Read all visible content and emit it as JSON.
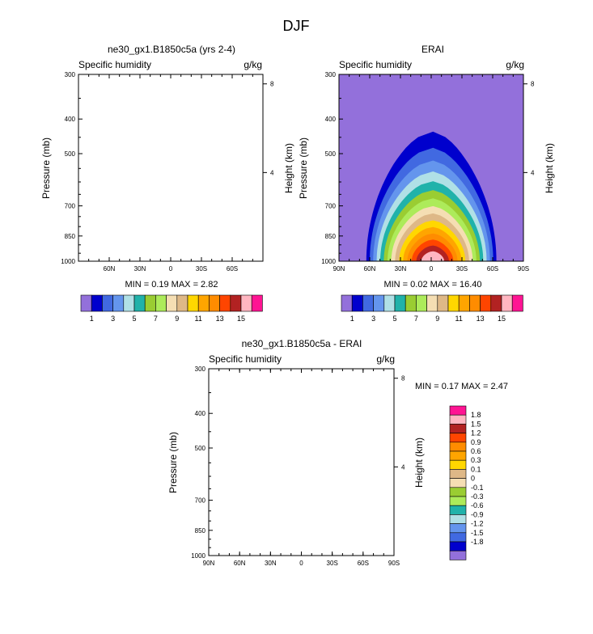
{
  "main_title": "DJF",
  "colors": {
    "abs_palette": [
      "#9370DB",
      "#0000CD",
      "#4169E1",
      "#6495ED",
      "#B0E0E6",
      "#20B2AA",
      "#9ACD32",
      "#ADEB5A",
      "#F5DEB3",
      "#DEB887",
      "#FFD700",
      "#FFA500",
      "#FF8C00",
      "#FF4500",
      "#B22222",
      "#FFB6C1",
      "#FF1493"
    ],
    "diff_palette": [
      "#9370DB",
      "#0000CD",
      "#4169E1",
      "#6495ED",
      "#B0E0E6",
      "#20B2AA",
      "#ADEB5A",
      "#9ACD32",
      "#F5DEB3",
      "#DEB887",
      "#FFD700",
      "#FFA500",
      "#FF8C00",
      "#FF4500",
      "#B22222",
      "#FFB6C1",
      "#FF1493"
    ]
  },
  "chart_data": [
    {
      "type": "heatmap",
      "title": "ne30_gx1.B1850c5a (yrs 2-4)",
      "left_label": "Specific humidity",
      "right_label": "g/kg",
      "ylabel": "Pressure (mb)",
      "y2label": "Height (km)",
      "yticks": [
        "300",
        "400",
        "500",
        "700",
        "850",
        "1000"
      ],
      "y2ticks": [
        "8",
        "4"
      ],
      "xticks": [
        "60N",
        "30N",
        "0",
        "30S",
        "60S"
      ],
      "stats": "MIN =   0.19  MAX =   2.82",
      "colorbar_labels": [
        "1",
        "3",
        "5",
        "7",
        "9",
        "11",
        "13",
        "15"
      ]
    },
    {
      "type": "heatmap",
      "title": "ERAI",
      "left_label": "Specific humidity",
      "right_label": "g/kg",
      "ylabel": "Pressure (mb)",
      "y2label": "Height (km)",
      "yticks": [
        "300",
        "400",
        "500",
        "700",
        "850",
        "1000"
      ],
      "y2ticks": [
        "8",
        "4"
      ],
      "xticks": [
        "90N",
        "60N",
        "30N",
        "0",
        "30S",
        "60S",
        "90S"
      ],
      "stats": "MIN =   0.02  MAX =  16.40",
      "colorbar_labels": [
        "1",
        "3",
        "5",
        "7",
        "9",
        "11",
        "13",
        "15"
      ],
      "contour_levels": [
        1,
        2,
        3,
        4,
        5,
        6,
        7,
        8,
        9,
        10,
        11,
        12,
        13,
        14,
        15
      ]
    },
    {
      "type": "heatmap",
      "title": "ne30_gx1.B1850c5a - ERAI",
      "left_label": "Specific humidity",
      "right_label": "g/kg",
      "ylabel": "Pressure (mb)",
      "y2label": "Height (km)",
      "yticks": [
        "300",
        "400",
        "500",
        "700",
        "850",
        "1000"
      ],
      "y2ticks": [
        "8",
        "4"
      ],
      "xticks": [
        "90N",
        "60N",
        "30N",
        "0",
        "30S",
        "60S",
        "90S"
      ],
      "stats": "MIN =   0.17  MAX =   2.47",
      "colorbar_labels": [
        "1.8",
        "1.5",
        "1.2",
        "0.9",
        "0.6",
        "0.3",
        "0.1",
        "0",
        "-0.1",
        "-0.3",
        "-0.6",
        "-0.9",
        "-1.2",
        "-1.5",
        "-1.8"
      ]
    }
  ]
}
